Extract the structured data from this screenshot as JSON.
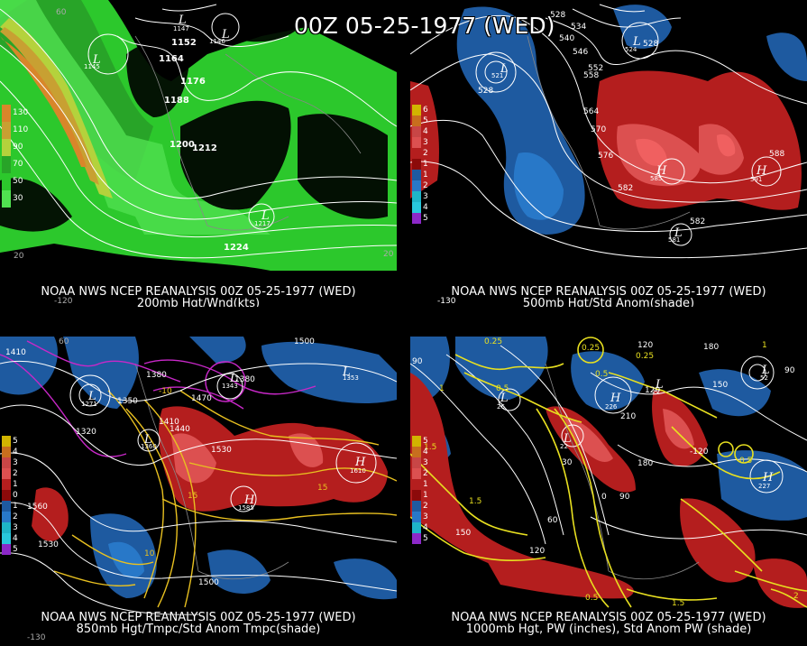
{
  "title": "00Z 05-25-1977 (WED)",
  "panels": [
    {
      "id": "p200",
      "caption_top": "NOAA NWS NCEP REANALYSIS 00Z 05-25-1977 (WED)",
      "caption_bottom": "200mb Hgt/Wnd(kts)",
      "legend": [
        {
          "label": "130",
          "color": "#d8862a"
        },
        {
          "label": "110",
          "color": "#c8a032"
        },
        {
          "label": "90",
          "color": "#b4d23c"
        },
        {
          "label": "70",
          "color": "#28a428"
        },
        {
          "label": "50",
          "color": "#2cc82c"
        },
        {
          "label": "30",
          "color": "#50e050"
        }
      ],
      "contour_labels": [
        "1152",
        "1164",
        "1176",
        "1188",
        "1200",
        "1212",
        "1224"
      ],
      "centers": [
        {
          "type": "L",
          "value": "1147"
        },
        {
          "type": "L",
          "value": "1146"
        },
        {
          "type": "L",
          "value": "1145"
        },
        {
          "type": "L",
          "value": "1217"
        }
      ],
      "graticule_labels": [
        "60",
        "20",
        "20",
        "-120"
      ]
    },
    {
      "id": "p500",
      "caption_top": "NOAA NWS NCEP REANALYSIS 00Z 05-25-1977 (WED)",
      "caption_bottom": "500mb Hgt/Std Anom(shade)",
      "legend": [
        {
          "label": "6",
          "color": "#d2b400"
        },
        {
          "label": "5",
          "color": "#c86e1e"
        },
        {
          "label": "4",
          "color": "#c84646"
        },
        {
          "label": "3",
          "color": "#dc5050"
        },
        {
          "label": "2",
          "color": "#b41e1e"
        },
        {
          "label": "1",
          "color": "#8c0a0a"
        },
        {
          "label": "1",
          "color": "#1e5aa0"
        },
        {
          "label": "2",
          "color": "#2878c8"
        },
        {
          "label": "3",
          "color": "#1eb4c8"
        },
        {
          "label": "4",
          "color": "#28c8dc"
        },
        {
          "label": "5",
          "color": "#8c28c8"
        }
      ],
      "contour_labels": [
        "528",
        "534",
        "540",
        "546",
        "552",
        "558",
        "564",
        "570",
        "576",
        "582",
        "588",
        "528",
        "528",
        "582"
      ],
      "centers": [
        {
          "type": "L",
          "value": "521"
        },
        {
          "type": "L",
          "value": "524"
        },
        {
          "type": "H",
          "value": "585"
        },
        {
          "type": "H",
          "value": "591"
        },
        {
          "type": "L",
          "value": "581"
        }
      ],
      "graticule_labels": [
        "-130"
      ]
    },
    {
      "id": "p850",
      "caption_top": "NOAA NWS NCEP REANALYSIS 00Z 05-25-1977 (WED)",
      "caption_bottom": "850mb Hgt/Tmpc/Std Anom Tmpc(shade)",
      "legend": [
        {
          "label": "5",
          "color": "#d2b400"
        },
        {
          "label": "4",
          "color": "#c86e1e"
        },
        {
          "label": "3",
          "color": "#c84646"
        },
        {
          "label": "2",
          "color": "#dc5050"
        },
        {
          "label": "1",
          "color": "#b41e1e"
        },
        {
          "label": "0",
          "color": "#8c0a0a"
        },
        {
          "label": "1",
          "color": "#1e5aa0"
        },
        {
          "label": "2",
          "color": "#2878c8"
        },
        {
          "label": "3",
          "color": "#1eb4c8"
        },
        {
          "label": "4",
          "color": "#28c8dc"
        },
        {
          "label": "5",
          "color": "#8c28c8"
        }
      ],
      "contour_labels": [
        "1410",
        "1500",
        "1380",
        "1350",
        "1320",
        "1470",
        "1410",
        "1440",
        "1380",
        "1530",
        "1560",
        "1530",
        "1500",
        "-10",
        "15",
        "15",
        "10"
      ],
      "centers": [
        {
          "type": "L",
          "value": "1271"
        },
        {
          "type": "L",
          "value": "1343"
        },
        {
          "type": "L",
          "value": "1353"
        },
        {
          "type": "L",
          "value": "1360"
        },
        {
          "type": "H",
          "value": "1610"
        },
        {
          "type": "H",
          "value": "1585"
        }
      ],
      "graticule_labels": [
        "60",
        "-130"
      ]
    },
    {
      "id": "p1000",
      "caption_top": "NOAA NWS NCEP REANALYSIS 00Z 05-25-1977 (WED)",
      "caption_bottom": "1000mb Hgt, PW (inches), Std Anom PW (shade)",
      "legend": [
        {
          "label": "5",
          "color": "#d2b400"
        },
        {
          "label": "4",
          "color": "#c86e1e"
        },
        {
          "label": "3",
          "color": "#c84646"
        },
        {
          "label": "2",
          "color": "#dc5050"
        },
        {
          "label": "1",
          "color": "#b41e1e"
        },
        {
          "label": "1",
          "color": "#8c0a0a"
        },
        {
          "label": "2",
          "color": "#1e5aa0"
        },
        {
          "label": "3",
          "color": "#2878c8"
        },
        {
          "label": "4",
          "color": "#1eb4c8"
        },
        {
          "label": "5",
          "color": "#8c28c8"
        }
      ],
      "contour_labels": [
        "0.25",
        "0.25",
        "0.25",
        "0.5",
        "0.5",
        "1",
        "1",
        "1.5",
        "1.5",
        "0.5",
        "0.5",
        "1.5",
        "2",
        "90",
        "120",
        "180",
        "150",
        "90",
        "120",
        "30",
        "0",
        "90",
        "60",
        "120",
        "150",
        "180",
        "-120",
        "210"
      ],
      "centers": [
        {
          "type": "L",
          "value": "26"
        },
        {
          "type": "H",
          "value": "226"
        },
        {
          "type": "L",
          "value": "22"
        },
        {
          "type": "H",
          "value": "227"
        },
        {
          "type": "L",
          "value": "52"
        },
        {
          "type": "L",
          "value": "22"
        }
      ],
      "graticule_labels": []
    }
  ]
}
